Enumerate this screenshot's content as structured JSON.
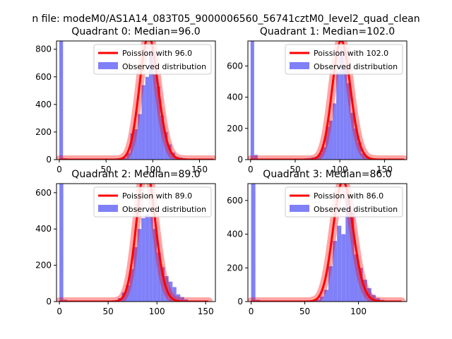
{
  "figure": {
    "suptitle": "n file: modeM0/AS1A14_083T05_9000006560_56741cztM0_level2_quad_clean"
  },
  "colors": {
    "histogram": "#8080f8",
    "poisson": "#ff0000",
    "axis": "#000000",
    "background": "#ffffff"
  },
  "chart_data": [
    {
      "type": "bar",
      "title": "Quadrant 0: Median=96.0",
      "median": 96.0,
      "xlim": [
        -3,
        167
      ],
      "ylim": [
        0,
        860
      ],
      "xticks": [
        0,
        50,
        100,
        150
      ],
      "yticks": [
        0,
        200,
        400,
        600,
        800
      ],
      "legend": {
        "location": "top-right",
        "entries": [
          "Poission with 96.0",
          "Observed distribution"
        ]
      },
      "histogram": {
        "name": "Observed distribution",
        "bin_width": 4.0,
        "bins": [
          {
            "x": 0,
            "count": 860
          },
          {
            "x": 4,
            "count": 10
          },
          {
            "x": 44,
            "count": 1
          },
          {
            "x": 48,
            "count": 2
          },
          {
            "x": 52,
            "count": 3
          },
          {
            "x": 56,
            "count": 4
          },
          {
            "x": 60,
            "count": 5
          },
          {
            "x": 64,
            "count": 7
          },
          {
            "x": 68,
            "count": 12
          },
          {
            "x": 72,
            "count": 50
          },
          {
            "x": 76,
            "count": 190
          },
          {
            "x": 80,
            "count": 220
          },
          {
            "x": 84,
            "count": 330
          },
          {
            "x": 88,
            "count": 540
          },
          {
            "x": 92,
            "count": 600
          },
          {
            "x": 96,
            "count": 790
          },
          {
            "x": 100,
            "count": 620
          },
          {
            "x": 104,
            "count": 530
          },
          {
            "x": 108,
            "count": 320
          },
          {
            "x": 112,
            "count": 200
          },
          {
            "x": 116,
            "count": 110
          },
          {
            "x": 120,
            "count": 50
          },
          {
            "x": 124,
            "count": 20
          },
          {
            "x": 128,
            "count": 15
          },
          {
            "x": 132,
            "count": 10
          },
          {
            "x": 136,
            "count": 5
          }
        ]
      },
      "poisson": {
        "name": "Poission with 96.0",
        "mean": 96.0,
        "x_range": [
          0,
          165
        ]
      }
    },
    {
      "type": "bar",
      "title": "Quadrant 1: Median=102.0",
      "median": 102.0,
      "xlim": [
        -3,
        175
      ],
      "ylim": [
        0,
        760
      ],
      "xticks": [
        0,
        50,
        100,
        150
      ],
      "yticks": [
        0,
        200,
        400,
        600
      ],
      "legend": {
        "location": "top-right",
        "entries": [
          "Poission with 102.0",
          "Observed distribution"
        ]
      },
      "histogram": {
        "name": "Observed distribution",
        "bin_width": 4.0,
        "bins": [
          {
            "x": 0,
            "count": 760
          },
          {
            "x": 4,
            "count": 30
          },
          {
            "x": 56,
            "count": 3
          },
          {
            "x": 60,
            "count": 8
          },
          {
            "x": 64,
            "count": 10
          },
          {
            "x": 68,
            "count": 15
          },
          {
            "x": 72,
            "count": 20
          },
          {
            "x": 76,
            "count": 40
          },
          {
            "x": 80,
            "count": 80
          },
          {
            "x": 84,
            "count": 210
          },
          {
            "x": 88,
            "count": 250
          },
          {
            "x": 92,
            "count": 360
          },
          {
            "x": 96,
            "count": 560
          },
          {
            "x": 100,
            "count": 700
          },
          {
            "x": 104,
            "count": 600
          },
          {
            "x": 108,
            "count": 490
          },
          {
            "x": 112,
            "count": 300
          },
          {
            "x": 116,
            "count": 200
          },
          {
            "x": 120,
            "count": 110
          },
          {
            "x": 124,
            "count": 40
          },
          {
            "x": 128,
            "count": 20
          },
          {
            "x": 132,
            "count": 12
          },
          {
            "x": 136,
            "count": 8
          },
          {
            "x": 140,
            "count": 5
          },
          {
            "x": 144,
            "count": 3
          }
        ]
      },
      "poisson": {
        "name": "Poission with 102.0",
        "mean": 102.0,
        "x_range": [
          0,
          172
        ]
      }
    },
    {
      "type": "bar",
      "title": "Quadrant 2: Median=89.0",
      "median": 89.0,
      "xlim": [
        -3,
        160
      ],
      "ylim": [
        0,
        650
      ],
      "xticks": [
        0,
        50,
        100,
        150
      ],
      "yticks": [
        0,
        200,
        400,
        600
      ],
      "legend": {
        "location": "top-right",
        "entries": [
          "Poission with 89.0",
          "Observed distribution"
        ]
      },
      "histogram": {
        "name": "Observed distribution",
        "bin_width": 4.0,
        "bins": [
          {
            "x": 0,
            "count": 650
          },
          {
            "x": 4,
            "count": 10
          },
          {
            "x": 52,
            "count": 2
          },
          {
            "x": 56,
            "count": 5
          },
          {
            "x": 60,
            "count": 20
          },
          {
            "x": 64,
            "count": 50
          },
          {
            "x": 68,
            "count": 90
          },
          {
            "x": 72,
            "count": 180
          },
          {
            "x": 76,
            "count": 300
          },
          {
            "x": 80,
            "count": 400
          },
          {
            "x": 84,
            "count": 460
          },
          {
            "x": 88,
            "count": 480
          },
          {
            "x": 92,
            "count": 470
          },
          {
            "x": 96,
            "count": 400
          },
          {
            "x": 100,
            "count": 270
          },
          {
            "x": 104,
            "count": 190
          },
          {
            "x": 108,
            "count": 140
          },
          {
            "x": 112,
            "count": 110
          },
          {
            "x": 116,
            "count": 80
          },
          {
            "x": 120,
            "count": 40
          },
          {
            "x": 124,
            "count": 25
          },
          {
            "x": 128,
            "count": 12
          },
          {
            "x": 132,
            "count": 5
          },
          {
            "x": 136,
            "count": 3
          }
        ]
      },
      "poisson": {
        "name": "Poission with 89.0",
        "mean": 89.0,
        "x_range": [
          0,
          153
        ]
      }
    },
    {
      "type": "bar",
      "title": "Quadrant 3: Median=86.0",
      "median": 86.0,
      "xlim": [
        -3,
        145
      ],
      "ylim": [
        0,
        700
      ],
      "xticks": [
        0,
        50,
        100
      ],
      "yticks": [
        0,
        200,
        400,
        600
      ],
      "legend": {
        "location": "top-right",
        "entries": [
          "Poission with 86.0",
          "Observed distribution"
        ]
      },
      "histogram": {
        "name": "Observed distribution",
        "bin_width": 4.0,
        "bins": [
          {
            "x": 0,
            "count": 700
          },
          {
            "x": 4,
            "count": 10
          },
          {
            "x": 56,
            "count": 5
          },
          {
            "x": 60,
            "count": 12
          },
          {
            "x": 64,
            "count": 30
          },
          {
            "x": 68,
            "count": 70
          },
          {
            "x": 72,
            "count": 210
          },
          {
            "x": 76,
            "count": 360
          },
          {
            "x": 80,
            "count": 450
          },
          {
            "x": 84,
            "count": 400
          },
          {
            "x": 88,
            "count": 620
          },
          {
            "x": 92,
            "count": 530
          },
          {
            "x": 96,
            "count": 280
          },
          {
            "x": 100,
            "count": 200
          },
          {
            "x": 104,
            "count": 130
          },
          {
            "x": 108,
            "count": 80
          },
          {
            "x": 112,
            "count": 40
          },
          {
            "x": 116,
            "count": 20
          },
          {
            "x": 120,
            "count": 10
          },
          {
            "x": 124,
            "count": 5
          }
        ]
      },
      "poisson": {
        "name": "Poission with 86.0",
        "mean": 86.0,
        "x_range": [
          0,
          140
        ]
      }
    }
  ]
}
